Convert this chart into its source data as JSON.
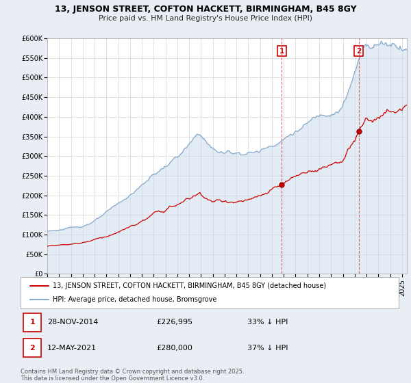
{
  "title_line1": "13, JENSON STREET, COFTON HACKETT, BIRMINGHAM, B45 8GY",
  "title_line2": "Price paid vs. HM Land Registry's House Price Index (HPI)",
  "background_color": "#e8eef4",
  "plot_bg_color": "#ffffff",
  "red_color": "#cc0000",
  "blue_color": "#88aacc",
  "legend_red": "13, JENSON STREET, COFTON HACKETT, BIRMINGHAM, B45 8GY (detached house)",
  "legend_blue": "HPI: Average price, detached house, Bromsgrove",
  "annotation1_num": "1",
  "annotation1_date": "28-NOV-2014",
  "annotation1_price": "£226,995",
  "annotation1_hpi": "33% ↓ HPI",
  "annotation2_num": "2",
  "annotation2_date": "12-MAY-2021",
  "annotation2_price": "£280,000",
  "annotation2_hpi": "37% ↓ HPI",
  "footer": "Contains HM Land Registry data © Crown copyright and database right 2025.\nThis data is licensed under the Open Government Licence v3.0.",
  "ylim": [
    0,
    600000
  ],
  "ytick_values": [
    0,
    50000,
    100000,
    150000,
    200000,
    250000,
    300000,
    350000,
    400000,
    450000,
    500000,
    550000,
    600000
  ],
  "ytick_labels": [
    "£0",
    "£50K",
    "£100K",
    "£150K",
    "£200K",
    "£250K",
    "£300K",
    "£350K",
    "£400K",
    "£450K",
    "£500K",
    "£550K",
    "£600K"
  ],
  "sale1_price": 226995,
  "sale1_year": 2014,
  "sale1_month": 11,
  "sale2_price": 280000,
  "sale2_year": 2021,
  "sale2_month": 5,
  "hpi_discount1": 0.33,
  "hpi_discount2": 0.37,
  "start_year": 1995,
  "end_year": 2025,
  "end_month": 6
}
